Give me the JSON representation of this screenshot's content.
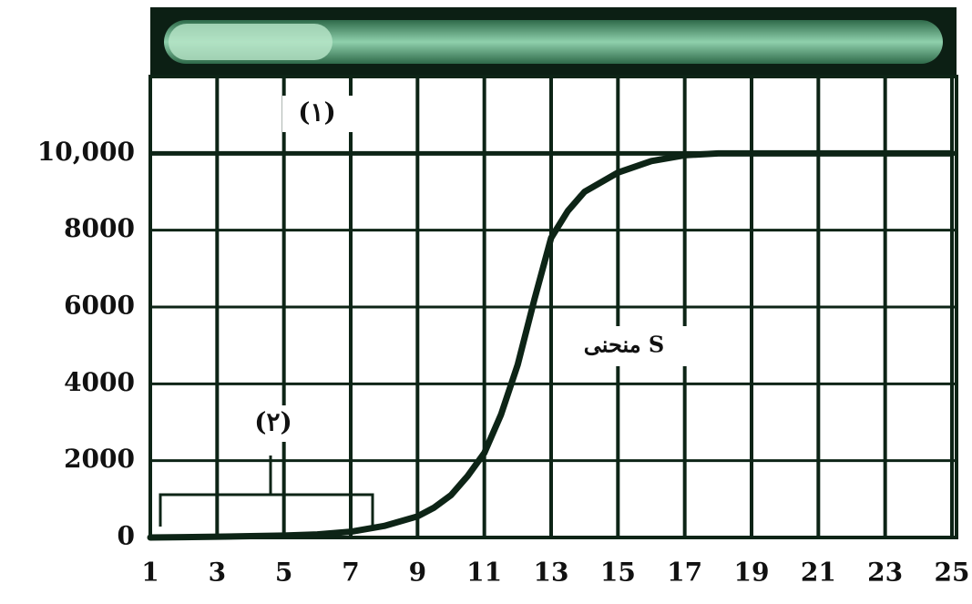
{
  "chart_data": {
    "type": "line",
    "x": [
      1,
      2,
      3,
      4,
      5,
      6,
      7,
      8,
      9,
      9.5,
      10,
      10.5,
      11,
      11.5,
      12,
      12.5,
      13,
      13.5,
      14,
      15,
      16,
      17,
      18,
      19,
      20,
      21,
      22,
      23,
      24,
      25
    ],
    "series": [
      {
        "color": "#0d2416",
        "values": [
          0,
          10,
          20,
          35,
          50,
          80,
          150,
          300,
          550,
          780,
          1100,
          1600,
          2200,
          3200,
          4500,
          6200,
          7800,
          8500,
          9000,
          9500,
          9800,
          9950,
          10000,
          10000,
          10000,
          10000,
          10000,
          10000,
          10000,
          10000
        ]
      }
    ],
    "xlim": [
      1,
      25
    ],
    "xticks": [
      1,
      3,
      5,
      7,
      9,
      11,
      13,
      15,
      17,
      19,
      21,
      23,
      25
    ],
    "ylim": [
      0,
      12000
    ],
    "yticks": [
      0,
      2000,
      4000,
      6000,
      8000,
      {
        "value": 10000,
        "label": "10,000"
      }
    ],
    "grid": true,
    "annotations": [
      "(١)",
      "(٢)",
      "منحنى S"
    ]
  }
}
